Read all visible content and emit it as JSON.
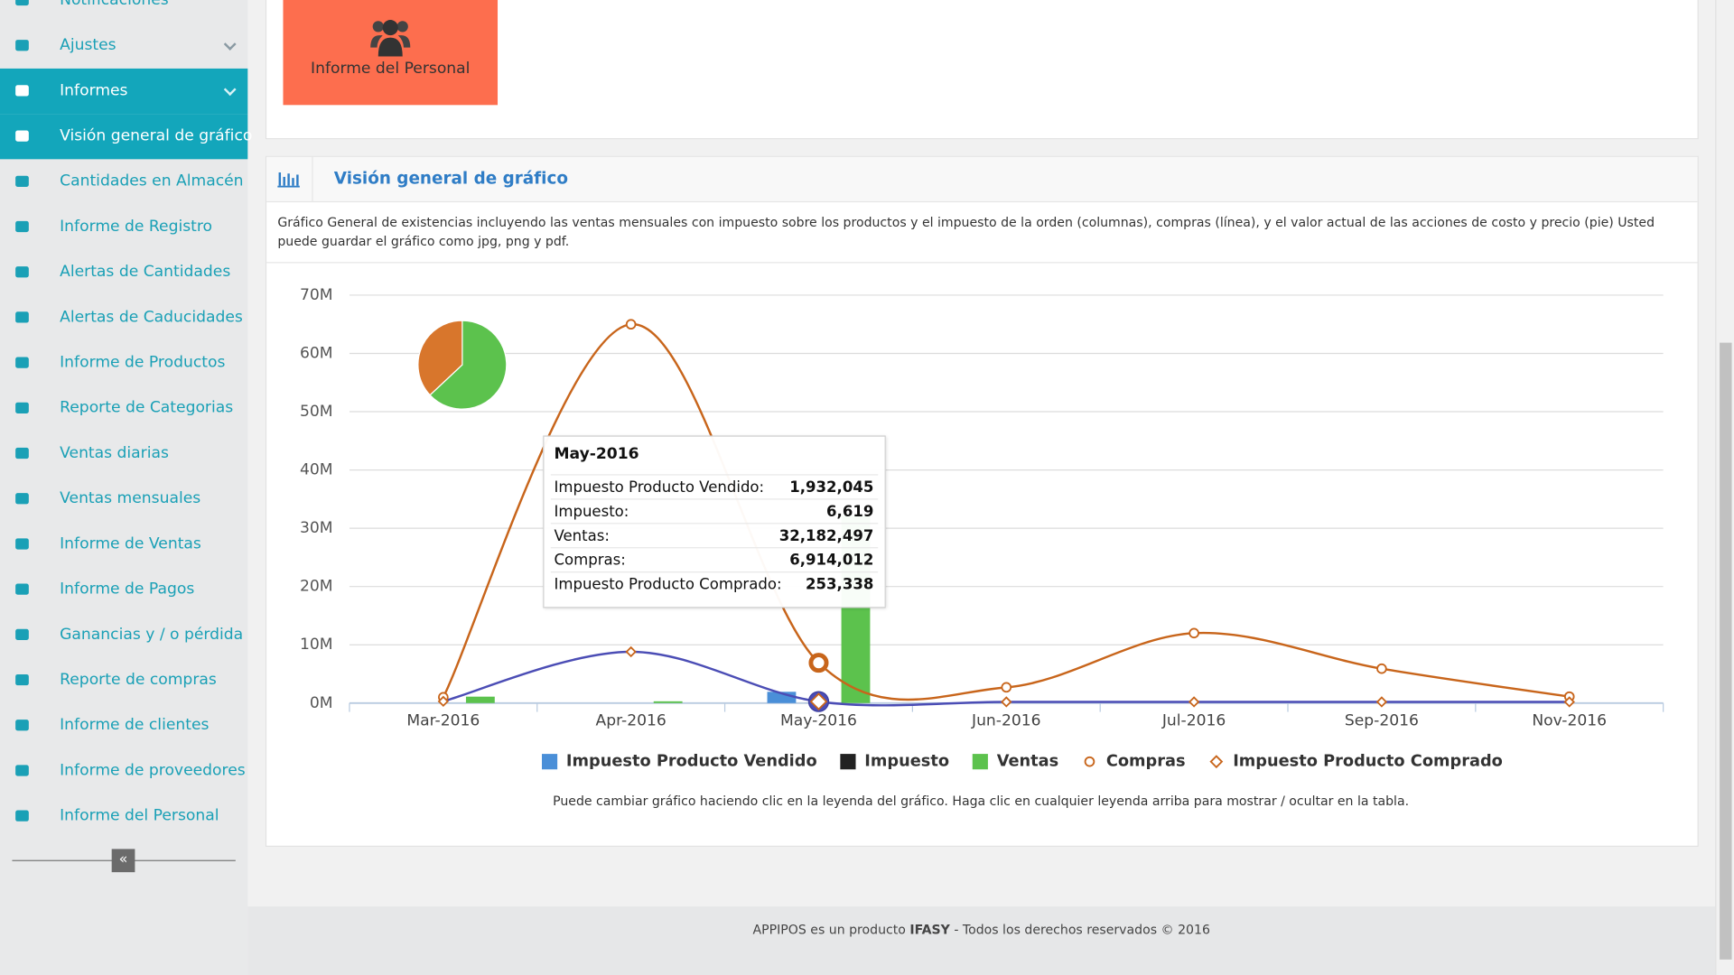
{
  "sidebar": {
    "items": [
      "Notificaciones",
      "Ajustes",
      "Informes",
      "Visión general de gráfico",
      "Cantidades en Almacén",
      "Informe de Registro",
      "Alertas de Cantidades",
      "Alertas de Caducidades",
      "Informe de Productos",
      "Reporte de Categorias",
      "Ventas diarias",
      "Ventas mensuales",
      "Informe de Ventas",
      "Informe de Pagos",
      "Ganancias y / o pérdida",
      "Reporte de compras",
      "Informe de clientes",
      "Informe de proveedores",
      "Informe del Personal"
    ]
  },
  "top_card": {
    "tile_label": "Informe del Personal"
  },
  "panel": {
    "title": "Visión general de gráfico",
    "description": "Gráfico General de existencias incluyendo las ventas mensuales con impuesto sobre los productos y el impuesto de la orden (columnas), compras (línea), y el valor actual de las acciones de costo y precio (pie) Usted puede guardar el gráfico como jpg, png y pdf.",
    "note": "Puede cambiar gráfico haciendo clic en la leyenda del gráfico. Haga clic en cualquier leyenda arriba para mostrar / ocultar en la tabla."
  },
  "chart_data": {
    "type": "combo",
    "categories": [
      "Mar-2016",
      "Apr-2016",
      "May-2016",
      "Jun-2016",
      "Jul-2016",
      "Sep-2016",
      "Nov-2016"
    ],
    "series": [
      {
        "name": "Impuesto Producto Vendido",
        "type": "column",
        "color": "#4a8fd8",
        "values": [
          0,
          0,
          1932045,
          0,
          0,
          0,
          0
        ]
      },
      {
        "name": "Impuesto",
        "type": "column",
        "color": "#222222",
        "values": [
          0,
          0,
          6619,
          0,
          0,
          0,
          0
        ]
      },
      {
        "name": "Ventas",
        "type": "column",
        "color": "#5cc24d",
        "values": [
          1100000,
          300000,
          32182497,
          0,
          0,
          0,
          0
        ]
      },
      {
        "name": "Compras",
        "type": "line",
        "color": "#c8651b",
        "marker": "circle",
        "values": [
          1000000,
          65000000,
          6914012,
          2700000,
          12000000,
          5900000,
          1100000
        ]
      },
      {
        "name": "Impuesto Producto Comprado",
        "type": "line",
        "color": "#4b4db5",
        "marker_color": "#c8651b",
        "marker": "diamond",
        "values": [
          300000,
          8800000,
          253338,
          200000,
          200000,
          200000,
          200000
        ]
      }
    ],
    "pie": {
      "values": [
        63,
        37
      ],
      "colors": [
        "#5cc24d",
        "#d8762c"
      ]
    },
    "ylim": [
      0,
      70000000
    ],
    "yticks": [
      {
        "value": 0,
        "label": "0M"
      },
      {
        "value": 10000000,
        "label": "10M"
      },
      {
        "value": 20000000,
        "label": "20M"
      },
      {
        "value": 30000000,
        "label": "30M"
      },
      {
        "value": 40000000,
        "label": "40M"
      },
      {
        "value": 50000000,
        "label": "50M"
      },
      {
        "value": 60000000,
        "label": "60M"
      },
      {
        "value": 70000000,
        "label": "70M"
      }
    ],
    "grid": true,
    "legend": "bottom"
  },
  "tooltip": {
    "title": "May-2016",
    "rows": [
      {
        "label": "Impuesto Producto Vendido:",
        "value": "1,932,045"
      },
      {
        "label": "Impuesto:",
        "value": "6,619"
      },
      {
        "label": "Ventas:",
        "value": "32,182,497"
      },
      {
        "label": "Compras:",
        "value": "6,914,012"
      },
      {
        "label": "Impuesto Producto Comprado:",
        "value": "253,338"
      }
    ]
  },
  "footer": {
    "prefix": "APPIPOS es un producto",
    "brand": "IFASY",
    "suffix": "- Todos los derechos reservados © 2016"
  }
}
